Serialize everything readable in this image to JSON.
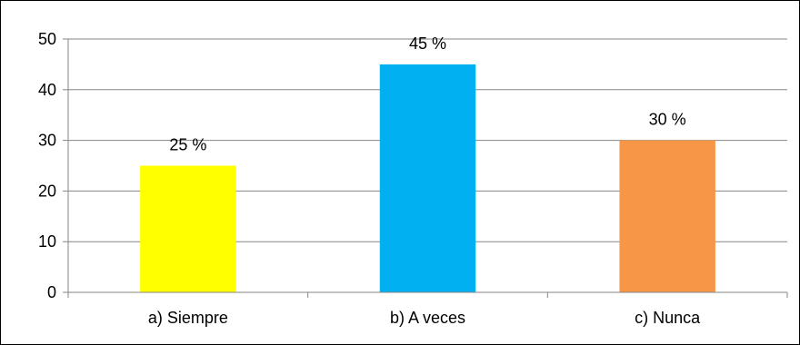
{
  "chart_data": {
    "type": "bar",
    "categories": [
      "a) Siempre",
      "b) A veces",
      "c) Nunca"
    ],
    "values": [
      25,
      45,
      30
    ],
    "data_labels": [
      "25 %",
      "45 %",
      "30 %"
    ],
    "colors": [
      "#FFFF00",
      "#00B0F0",
      "#F79646"
    ],
    "y_ticks": [
      0,
      10,
      20,
      30,
      40,
      50
    ],
    "ylim": [
      0,
      50
    ],
    "grid": true,
    "legend": "none"
  }
}
